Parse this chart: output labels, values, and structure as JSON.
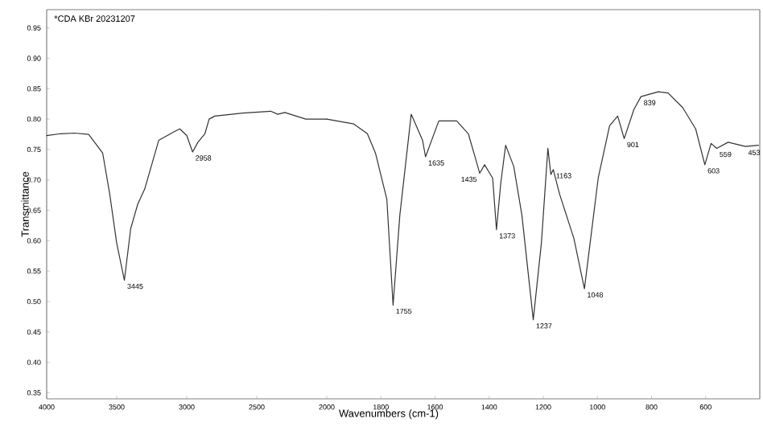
{
  "chart_data": [
    {
      "type": "line",
      "ylabel": "Transmittance",
      "color": "#333333",
      "line_style": "solid",
      "marker": "none",
      "grid": false,
      "xlim": [
        4000,
        2000
      ],
      "ylim": [
        0.34,
        0.98
      ],
      "xticks": [
        4000,
        3500,
        3000,
        2500
      ],
      "yticks": [
        0.35,
        {
          "value": 0.4,
          "label": "0.40"
        },
        0.45,
        {
          "value": 0.5,
          "label": "0.50"
        },
        0.55,
        {
          "value": 0.6,
          "label": "0.60"
        },
        0.65,
        {
          "value": 0.7,
          "label": "0.70"
        },
        0.75,
        {
          "value": 0.8,
          "label": "0.80"
        },
        0.85,
        {
          "value": 0.9,
          "label": "0.90"
        },
        0.95
      ],
      "x": [
        4000,
        3900,
        3800,
        3700,
        3600,
        3550,
        3500,
        3445,
        3400,
        3350,
        3300,
        3200,
        3100,
        3050,
        3000,
        2958,
        2920,
        2870,
        2840,
        2800,
        2600,
        2400,
        2350,
        2300,
        2150,
        2000
      ],
      "values": [
        0.773,
        0.776,
        0.777,
        0.775,
        0.744,
        0.677,
        0.596,
        0.535,
        0.62,
        0.66,
        0.685,
        0.765,
        0.778,
        0.784,
        0.773,
        0.746,
        0.762,
        0.776,
        0.8,
        0.805,
        0.81,
        0.813,
        0.808,
        0.811,
        0.8,
        0.8
      ],
      "annotations": [
        "*CDA   KBr 20231207",
        {
          "text": "3445",
          "x": 3445,
          "y": 0.535
        },
        {
          "text": "2958",
          "x": 2958,
          "y": 0.746
        }
      ]
    },
    {
      "type": "line",
      "xlabel": "Wavenumbers (cm-1)",
      "color": "#333333",
      "line_style": "solid",
      "marker": "none",
      "grid": false,
      "tick_labels": "x",
      "xlim": [
        2000,
        400
      ],
      "ylim": [
        0.34,
        0.98
      ],
      "xticks": [
        2000,
        1800,
        1600,
        1400,
        1200,
        1000,
        800,
        600
      ],
      "x": [
        2000,
        1900,
        1850,
        1820,
        1778,
        1755,
        1730,
        1688,
        1646,
        1635,
        1586,
        1520,
        1477,
        1447,
        1435,
        1417,
        1387,
        1373,
        1357,
        1339,
        1309,
        1279,
        1237,
        1207,
        1183,
        1172,
        1163,
        1140,
        1087,
        1048,
        997,
        955,
        925,
        901,
        865,
        839,
        775,
        739,
        685,
        637,
        603,
        580,
        559,
        517,
        453,
        405
      ],
      "values": [
        0.8,
        0.792,
        0.776,
        0.744,
        0.668,
        0.494,
        0.642,
        0.808,
        0.765,
        0.738,
        0.797,
        0.797,
        0.776,
        0.73,
        0.711,
        0.725,
        0.703,
        0.618,
        0.695,
        0.757,
        0.722,
        0.642,
        0.47,
        0.596,
        0.752,
        0.709,
        0.717,
        0.677,
        0.604,
        0.521,
        0.703,
        0.789,
        0.805,
        0.768,
        0.816,
        0.837,
        0.845,
        0.843,
        0.819,
        0.784,
        0.725,
        0.76,
        0.752,
        0.762,
        0.755,
        0.757
      ],
      "annotations": [
        {
          "text": "1755",
          "x": 1755,
          "y": 0.494
        },
        {
          "text": "1635",
          "x": 1635,
          "y": 0.738
        },
        {
          "text": "1435",
          "x": 1435,
          "y": 0.711
        },
        {
          "text": "1373",
          "x": 1373,
          "y": 0.618
        },
        {
          "text": "1237",
          "x": 1237,
          "y": 0.47
        },
        {
          "text": "1163",
          "x": 1163,
          "y": 0.717
        },
        {
          "text": "1048",
          "x": 1048,
          "y": 0.521
        },
        {
          "text": "901",
          "x": 901,
          "y": 0.768
        },
        {
          "text": "839",
          "x": 839,
          "y": 0.837
        },
        {
          "text": "603",
          "x": 603,
          "y": 0.725
        },
        {
          "text": "559",
          "x": 559,
          "y": 0.752
        },
        {
          "text": "453",
          "x": 453,
          "y": 0.755
        }
      ]
    }
  ]
}
